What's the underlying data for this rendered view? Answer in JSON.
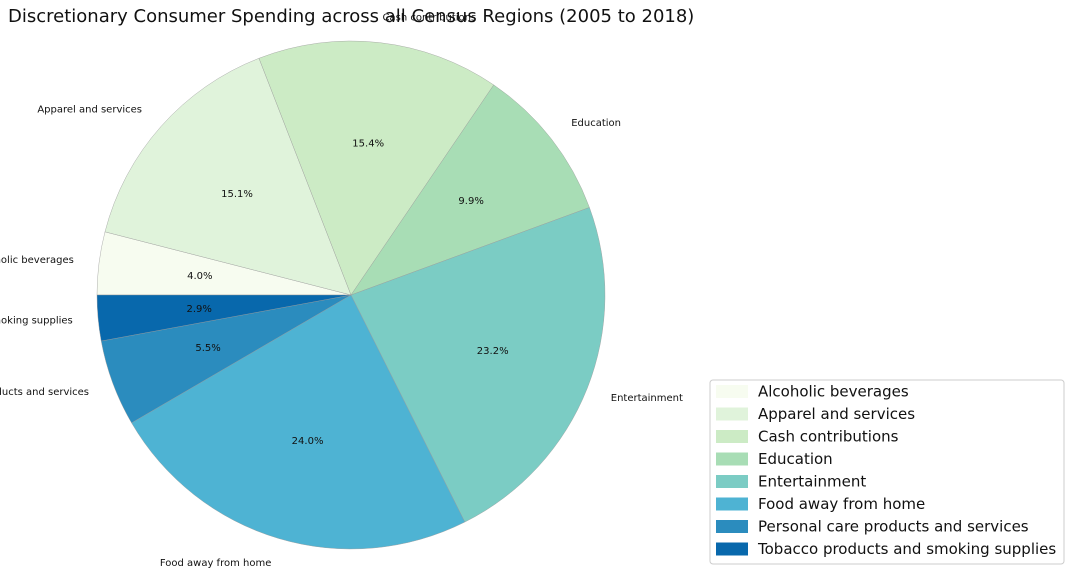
{
  "chart_data": {
    "type": "pie",
    "title": "Discretionary Consumer Spending across all Census Regions (2005 to 2018)",
    "categories": [
      "Alcoholic beverages",
      "Apparel and services",
      "Cash contributions",
      "Education",
      "Entertainment",
      "Food away from home",
      "Personal care products and services",
      "Tobacco products and smoking supplies"
    ],
    "values": [
      4.0,
      15.1,
      15.4,
      9.9,
      23.2,
      24.0,
      5.5,
      2.9
    ],
    "value_labels": [
      "4.0%",
      "15.1%",
      "15.4%",
      "9.9%",
      "23.2%",
      "24.0%",
      "5.5%",
      "2.9%"
    ],
    "colors": [
      "#f7fcf0",
      "#e0f3db",
      "#ccebc5",
      "#a8ddb5",
      "#7bccc4",
      "#4eb3d3",
      "#2b8cbe",
      "#0868ac"
    ],
    "start_angle_deg": 180,
    "direction": "clockwise",
    "legend": {
      "position": "bottom-right",
      "entries": [
        "Alcoholic beverages",
        "Apparel and services",
        "Cash contributions",
        "Education",
        "Entertainment",
        "Food away from home",
        "Personal care products and services",
        "Tobacco products and smoking supplies"
      ]
    }
  }
}
